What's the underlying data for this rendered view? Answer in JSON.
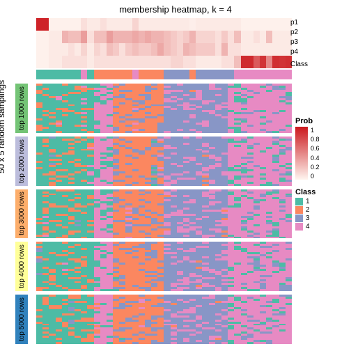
{
  "title": "membership heatmap, k = 4",
  "ylabel": "50 x 5 random samplings",
  "prob_rows": [
    "p1",
    "p2",
    "p3",
    "p4"
  ],
  "class_label": "Class",
  "row_blocks": [
    {
      "label": "top 1000 rows",
      "color": "#74C476"
    },
    {
      "label": "top 2000 rows",
      "color": "#BCBDDC"
    },
    {
      "label": "top 3000 rows",
      "color": "#FDAE6B"
    },
    {
      "label": "top 4000 rows",
      "color": "#FFFF99"
    },
    {
      "label": "top 5000 rows",
      "color": "#3182BD"
    }
  ],
  "prob_legend": {
    "title": "Prob",
    "ticks": [
      "1",
      "0.8",
      "0.6",
      "0.4",
      "0.2",
      "0"
    ],
    "low": "#FFF5F0",
    "high": "#CB181D"
  },
  "class_legend": {
    "title": "Class",
    "items": [
      {
        "label": "1",
        "color": "#4DBBA5"
      },
      {
        "label": "2",
        "color": "#FB8760"
      },
      {
        "label": "3",
        "color": "#8896C6"
      },
      {
        "label": "4",
        "color": "#E78AC3"
      }
    ]
  },
  "n_cols": 40,
  "prob_matrix": [
    [
      0.95,
      0.95,
      0.02,
      0.02,
      0.02,
      0.02,
      0.02,
      0.1,
      0.05,
      0.05,
      0.1,
      0.05,
      0.05,
      0.05,
      0.05,
      0.15,
      0.05,
      0.05,
      0.05,
      0.05,
      0.05,
      0.05,
      0.05,
      0.05,
      0.03,
      0.05,
      0.05,
      0.05,
      0.05,
      0.05,
      0.05,
      0.05,
      0.02,
      0.02,
      0.02,
      0.02,
      0.02,
      0.02,
      0.02,
      0.02
    ],
    [
      0.02,
      0.02,
      0.05,
      0.05,
      0.3,
      0.25,
      0.25,
      0.4,
      0.1,
      0.25,
      0.25,
      0.4,
      0.3,
      0.3,
      0.3,
      0.35,
      0.3,
      0.35,
      0.3,
      0.3,
      0.25,
      0.2,
      0.15,
      0.2,
      0.3,
      0.15,
      0.15,
      0.15,
      0.1,
      0.2,
      0.1,
      0.25,
      0.05,
      0.05,
      0.1,
      0.05,
      0.25,
      0.05,
      0.05,
      0.05
    ],
    [
      0.02,
      0.02,
      0.05,
      0.05,
      0.05,
      0.1,
      0.05,
      0.15,
      0.05,
      0.15,
      0.1,
      0.25,
      0.2,
      0.1,
      0.2,
      0.25,
      0.2,
      0.2,
      0.25,
      0.35,
      0.25,
      0.2,
      0.15,
      0.3,
      0.25,
      0.2,
      0.2,
      0.2,
      0.1,
      0.3,
      0.1,
      0.1,
      0.05,
      0.05,
      0.05,
      0.05,
      0.05,
      0.05,
      0.05,
      0.05
    ],
    [
      0.02,
      0.02,
      0.05,
      0.05,
      0.1,
      0.1,
      0.1,
      0.1,
      0.05,
      0.1,
      0.1,
      0.1,
      0.1,
      0.1,
      0.1,
      0.1,
      0.1,
      0.1,
      0.1,
      0.1,
      0.1,
      0.15,
      0.15,
      0.1,
      0.1,
      0.05,
      0.05,
      0.05,
      0.05,
      0.1,
      0.1,
      0.25,
      0.92,
      0.92,
      0.7,
      0.88,
      0.5,
      0.9,
      0.88,
      0.9
    ]
  ],
  "class_row": [
    1,
    1,
    1,
    1,
    1,
    1,
    1,
    4,
    1,
    2,
    2,
    2,
    2,
    2,
    2,
    4,
    2,
    2,
    2,
    2,
    3,
    3,
    3,
    3,
    2,
    3,
    3,
    3,
    3,
    3,
    3,
    4,
    4,
    4,
    4,
    4,
    4,
    4,
    4,
    4
  ],
  "base_pattern": [
    1,
    1,
    1,
    1,
    1,
    1,
    1,
    1,
    1,
    4,
    4,
    4,
    2,
    2,
    2,
    2,
    2,
    2,
    2,
    2,
    3,
    3,
    3,
    3,
    3,
    3,
    3,
    3,
    3,
    3,
    4,
    4,
    4,
    4,
    4,
    4,
    4,
    4,
    4,
    4
  ],
  "panel_noise": [
    [
      [
        3,
        4
      ],
      [
        7,
        4
      ],
      [
        9,
        1
      ],
      [
        15,
        4
      ],
      [
        24,
        2
      ],
      [
        31,
        1
      ],
      [
        38,
        1
      ]
    ],
    [
      [
        2,
        3
      ],
      [
        8,
        4
      ],
      [
        11,
        1
      ],
      [
        18,
        1
      ],
      [
        19,
        4
      ],
      [
        26,
        2
      ],
      [
        33,
        1
      ],
      [
        39,
        3
      ]
    ],
    [
      [
        1,
        4
      ],
      [
        6,
        3
      ],
      [
        10,
        1
      ],
      [
        14,
        4
      ],
      [
        20,
        2
      ],
      [
        27,
        4
      ],
      [
        29,
        2
      ],
      [
        36,
        1
      ]
    ],
    [
      [
        0,
        3
      ],
      [
        4,
        4
      ],
      [
        12,
        1
      ],
      [
        17,
        3
      ],
      [
        22,
        4
      ],
      [
        25,
        2
      ],
      [
        34,
        1
      ],
      [
        37,
        3
      ]
    ],
    [
      [
        5,
        3
      ],
      [
        9,
        2
      ],
      [
        13,
        1
      ],
      [
        16,
        4
      ],
      [
        21,
        2
      ],
      [
        23,
        4
      ],
      [
        28,
        2
      ],
      [
        30,
        1
      ],
      [
        35,
        3
      ]
    ]
  ],
  "rows_per_panel": 24
}
